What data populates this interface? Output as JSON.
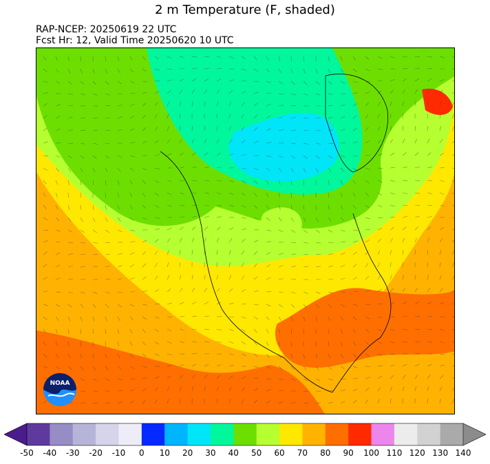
{
  "title": "2 m Temperature (F, shaded)",
  "subtitle_line1": "RAP-NCEP: 20250619 22 UTC",
  "subtitle_line2": "Fcst Hr: 12, Valid Time 20250620 10 UTC",
  "logo": {
    "text": "NOAA",
    "icon": "noaa-logo"
  },
  "colorbar": {
    "tick_labels": [
      "-50",
      "-40",
      "-30",
      "-20",
      "-10",
      "0",
      "10",
      "20",
      "30",
      "40",
      "50",
      "60",
      "70",
      "80",
      "90",
      "100",
      "110",
      "120",
      "130",
      "140"
    ],
    "under_color": "#4b1c8c",
    "over_color": "#8c8c8c",
    "colors": [
      "#5f3a9e",
      "#968dc4",
      "#b7b4da",
      "#d6d4ea",
      "#eeedf7",
      "#0529ff",
      "#00b5ff",
      "#00e5f7",
      "#00f79c",
      "#6ddf00",
      "#b6ff30",
      "#ffe800",
      "#ffb300",
      "#ff6f00",
      "#ff2a00",
      "#ec86ec",
      "#ececec",
      "#d2d2d2",
      "#aaaaaa"
    ]
  },
  "map": {
    "field": "2 m Temperature",
    "units": "F",
    "colors": {
      "cold_30_40": "#00f79c",
      "cold_20_30": "#00e5f7",
      "mid_40_50": "#6ddf00",
      "mid_50_60": "#b6ff30",
      "warm_60_70": "#ffe800",
      "warm_70_80": "#ffb300",
      "hot_80_90": "#ff6f00",
      "hot_90_100": "#ff2a00"
    }
  }
}
